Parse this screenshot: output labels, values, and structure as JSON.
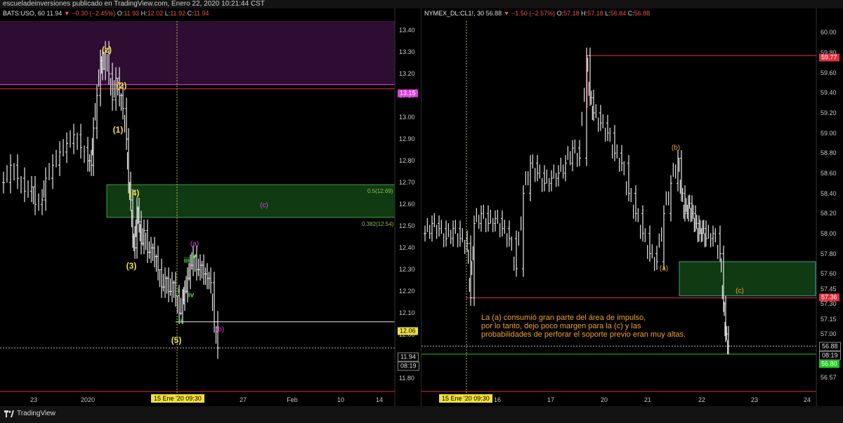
{
  "publisher": "escueladeinversiones publicado en TradingView.com, Enero 22, 2020 10:21:44 CST",
  "brand": "TradingView",
  "icons": {
    "brand": "tradingview-logo-icon"
  },
  "colors": {
    "up": "#e8e8e8",
    "negative": "#f05050",
    "yellow": "#f2e03a",
    "green_zone": "#0f3a12",
    "purple_zone": "#2e0d33",
    "red_line": "#e03040",
    "orange": "#f0a030",
    "magenta": "#e040e0",
    "wave_green": "#48e048"
  },
  "left": {
    "symbol": "BATS:USO, 60",
    "ohlc": {
      "last": "11.94",
      "change": "−0.30 (−2.45%)",
      "o_label": "O:",
      "o": "11.93",
      "h_label": "H:",
      "h": "12.02",
      "l_label": "L:",
      "l": "11.92",
      "c_label": "C:",
      "c": "11.94"
    },
    "price_ticks": [
      "13.40",
      "13.30",
      "13.20",
      "13.10",
      "13.00",
      "12.90",
      "12.80",
      "12.70",
      "12.60",
      "12.50",
      "12.40",
      "12.30",
      "12.20",
      "12.10",
      "12.00",
      "11.90",
      "11.80"
    ],
    "price_tags": [
      {
        "label": "13.15",
        "bg": "#e040e0",
        "fg": "#ffffff"
      },
      {
        "label": "12.06",
        "bg": "#f2e03a",
        "fg": "#000000"
      },
      {
        "label": "11.94",
        "bg": "#000000",
        "fg": "#e0e0e0"
      },
      {
        "label": "08:19",
        "bg": "#000000",
        "fg": "#e0e0e0"
      }
    ],
    "x_ticks": [
      "23",
      "2020",
      "27",
      "Feb",
      "10",
      "14"
    ],
    "cursor_label": "15 Ene '20   09:30",
    "fib": {
      "upper": "0.5(12.69)",
      "lower": "0.382(12.54)"
    },
    "waves": {
      "z": "(z)",
      "w2": "(2)",
      "w1": "(1)",
      "w4": "(4)",
      "w3": "(3)",
      "w5": "(5)",
      "a": "(a)",
      "b": "(b)",
      "c": "(c)",
      "i": "i",
      "ii": "ii",
      "iii": "iii",
      "iv": "iv",
      "v": "v"
    }
  },
  "right": {
    "symbol": "NYMEX_DL:CL1!, 30",
    "ohlc": {
      "last": "56.88",
      "change": "−1.50 (−2.57%)",
      "o_label": "O:",
      "o": "57.18",
      "h_label": "H:",
      "h": "57.18",
      "l_label": "L:",
      "l": "56.84",
      "c_label": "C:",
      "c": "56.88"
    },
    "price_ticks": [
      "60.00",
      "59.80",
      "59.60",
      "59.40",
      "59.20",
      "59.00",
      "58.80",
      "58.60",
      "58.40",
      "58.20",
      "58.00",
      "57.80",
      "57.60",
      "57.45",
      "57.30",
      "57.15",
      "57.00",
      "56.57"
    ],
    "price_tags": [
      {
        "label": "59.77",
        "bg": "#e03040",
        "fg": "#ffffff"
      },
      {
        "label": "57.36",
        "bg": "#e03040",
        "fg": "#ffffff"
      },
      {
        "label": "56.88",
        "bg": "#000000",
        "fg": "#e0e0e0"
      },
      {
        "label": "08:19",
        "bg": "#000000",
        "fg": "#e0e0e0"
      },
      {
        "label": "56.80",
        "bg": "#21c821",
        "fg": "#ffffff"
      }
    ],
    "x_ticks": [
      "16",
      "17",
      "20",
      "21",
      "22",
      "23",
      "24"
    ],
    "cursor_label": "15 Ene '20   09:30",
    "waves": {
      "a": "(a)",
      "b": "(b)",
      "c": "(c)"
    },
    "note": "La (a) consumió gran parte del área de impulso,\npor lo tanto, dejo poco margen para la (c) y las\nprobabilidades de perforar el soporte previo eran muy altas."
  },
  "chart_data": [
    {
      "type": "line",
      "title": "BATS:USO, 60",
      "xlabel": "",
      "ylabel": "",
      "x_ticks": [
        "23",
        "2020",
        "27",
        "Feb",
        "10",
        "14"
      ],
      "ylim": [
        11.75,
        13.5
      ],
      "series": [
        {
          "name": "",
          "x": [
            0,
            10,
            20,
            30,
            40,
            45,
            55,
            60,
            70,
            80,
            90,
            100,
            110,
            120,
            125,
            128,
            133,
            138,
            141,
            145,
            150,
            155,
            160,
            165,
            170,
            175,
            178,
            181,
            184,
            187,
            190,
            193,
            196,
            200,
            205,
            210,
            215,
            220,
            225,
            230,
            235,
            240,
            245,
            250,
            255,
            258,
            262,
            266,
            270,
            275,
            280,
            285,
            290,
            295,
            300,
            305
          ],
          "values": [
            12.7,
            12.78,
            12.72,
            12.66,
            12.68,
            12.6,
            12.62,
            12.72,
            12.78,
            12.84,
            12.88,
            12.92,
            12.86,
            12.8,
            12.78,
            12.95,
            13.1,
            13.26,
            13.22,
            13.3,
            13.2,
            13.08,
            13.18,
            13.1,
            13.04,
            12.9,
            12.7,
            12.62,
            12.45,
            12.4,
            12.58,
            12.52,
            12.42,
            12.48,
            12.38,
            12.4,
            12.36,
            12.3,
            12.22,
            12.26,
            12.2,
            12.24,
            12.18,
            12.1,
            12.16,
            12.2,
            12.26,
            12.32,
            12.36,
            12.3,
            12.32,
            12.28,
            12.26,
            12.24,
            12.06,
            11.94
          ]
        }
      ],
      "annotations": {
        "resistance": 13.15,
        "fib_0_5": 12.69,
        "fib_0_382": 12.54,
        "support": 12.06,
        "last": 11.94
      }
    },
    {
      "type": "line",
      "title": "NYMEX_DL:CL1!, 30",
      "xlabel": "",
      "ylabel": "",
      "x_ticks": [
        "16",
        "17",
        "20",
        "21",
        "22",
        "23",
        "24"
      ],
      "ylim": [
        56.45,
        60.1
      ],
      "series": [
        {
          "name": "",
          "x": [
            0,
            10,
            20,
            30,
            40,
            50,
            60,
            65,
            70,
            80,
            90,
            100,
            110,
            120,
            130,
            140,
            150,
            160,
            170,
            180,
            190,
            200,
            210,
            220,
            230,
            235,
            240,
            250,
            260,
            270,
            280,
            290,
            300,
            310,
            320,
            330,
            340,
            350,
            360,
            365,
            370,
            375,
            380,
            385,
            390,
            395,
            400,
            410,
            420,
            425,
            428,
            432
          ],
          "values": [
            58.0,
            58.1,
            58.05,
            57.95,
            58.05,
            57.95,
            57.9,
            57.36,
            58.1,
            58.2,
            58.1,
            58.15,
            58.05,
            57.95,
            57.65,
            58.4,
            58.7,
            58.6,
            58.5,
            58.55,
            58.6,
            58.7,
            58.85,
            58.75,
            59.77,
            59.35,
            59.2,
            59.1,
            59.0,
            58.8,
            58.7,
            58.4,
            58.2,
            58.0,
            57.8,
            57.72,
            58.2,
            58.5,
            58.75,
            58.4,
            58.2,
            58.3,
            58.2,
            58.1,
            58.0,
            58.05,
            57.95,
            58.0,
            57.8,
            57.3,
            57.0,
            56.88
          ]
        }
      ],
      "annotations": {
        "resistance": 59.77,
        "support": 57.36,
        "zone_top": 57.72,
        "zone_bottom": 57.38,
        "last": 56.88,
        "low_line": 56.8
      }
    }
  ]
}
